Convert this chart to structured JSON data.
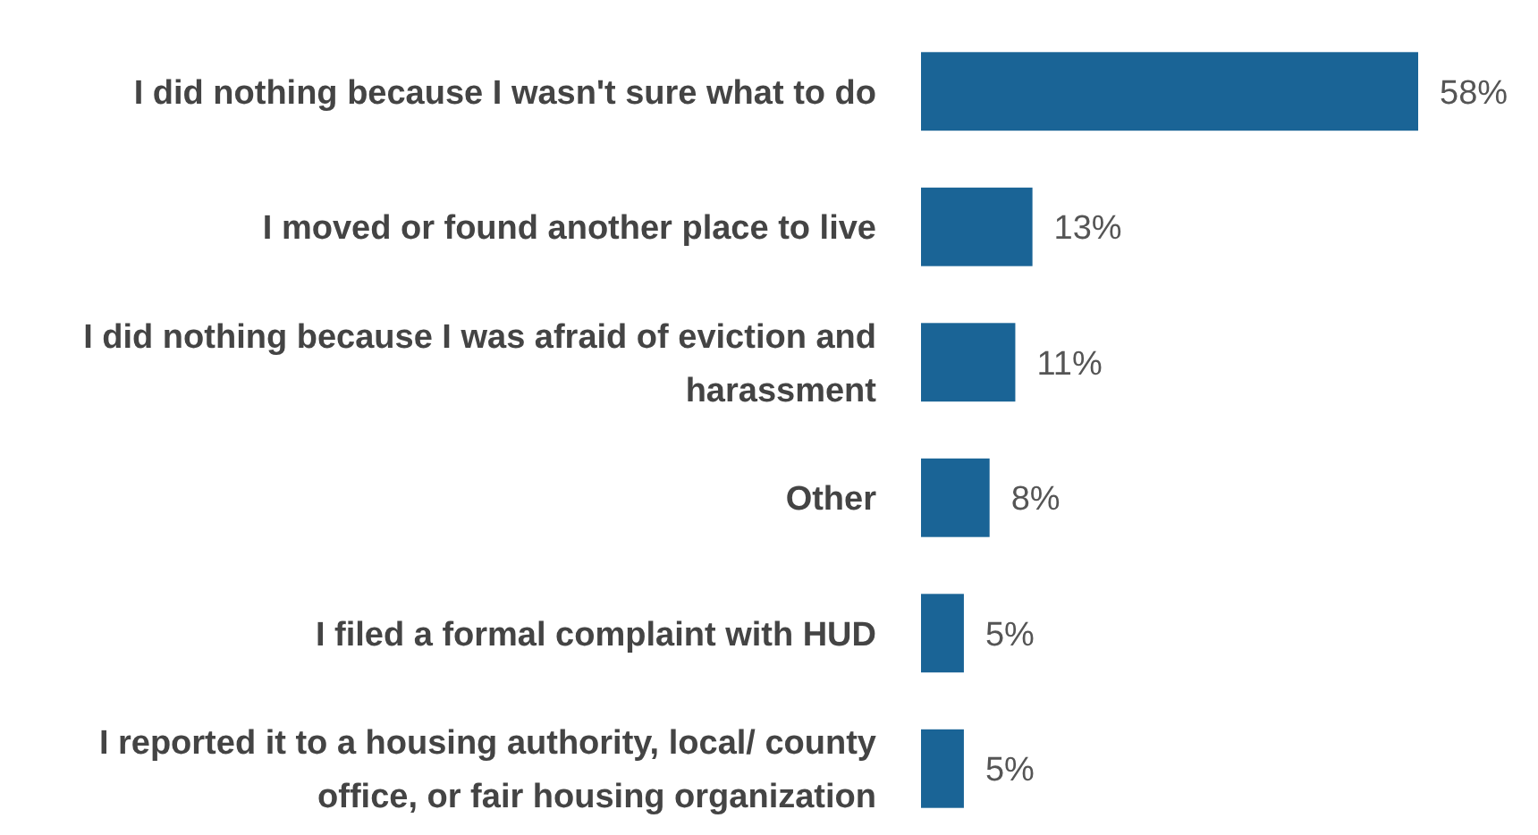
{
  "chart_data": {
    "type": "bar",
    "orientation": "horizontal",
    "categories": [
      "I did nothing because I wasn't sure what to do",
      "I moved or found another place to live",
      "I did nothing because I was afraid of eviction and harassment",
      "Other",
      "I filed a formal complaint with HUD",
      "I reported it to a housing authority, local/ county office, or fair housing organization"
    ],
    "values": [
      58,
      13,
      11,
      8,
      5,
      5
    ],
    "value_labels": [
      "58%",
      "13%",
      "11%",
      "8%",
      "5%",
      "5%"
    ],
    "color": "#1a6496"
  }
}
